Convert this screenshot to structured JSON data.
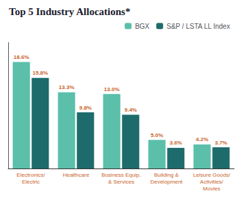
{
  "chart_data": {
    "type": "bar",
    "title": "Top 5 Industry Allocations*",
    "categories": [
      "Electronics/\nElectric",
      "Healthcare",
      "Business Equip.\n& Services",
      "Building &\nDevelopment",
      "Leisure Goods/\nActivities/\nMovies"
    ],
    "series": [
      {
        "name": "BGX",
        "color": "#5bbfaa",
        "values": [
          18.6,
          13.3,
          13.0,
          5.0,
          4.2
        ],
        "value_labels": [
          "18.6%",
          "13.3%",
          "13.0%",
          "5.0%",
          "4.2%"
        ]
      },
      {
        "name": "S&P / LSTA LL Index",
        "color": "#1e6b6b",
        "values": [
          15.8,
          9.8,
          9.4,
          3.6,
          3.7
        ],
        "value_labels": [
          "15.8%",
          "9.8%",
          "9.4%",
          "3.6%",
          "3.7%"
        ]
      }
    ],
    "ylim": [
      0,
      22
    ],
    "yticks": [],
    "grid": false,
    "legend": "upper right",
    "data_labels": true,
    "tick_labels": "x"
  }
}
